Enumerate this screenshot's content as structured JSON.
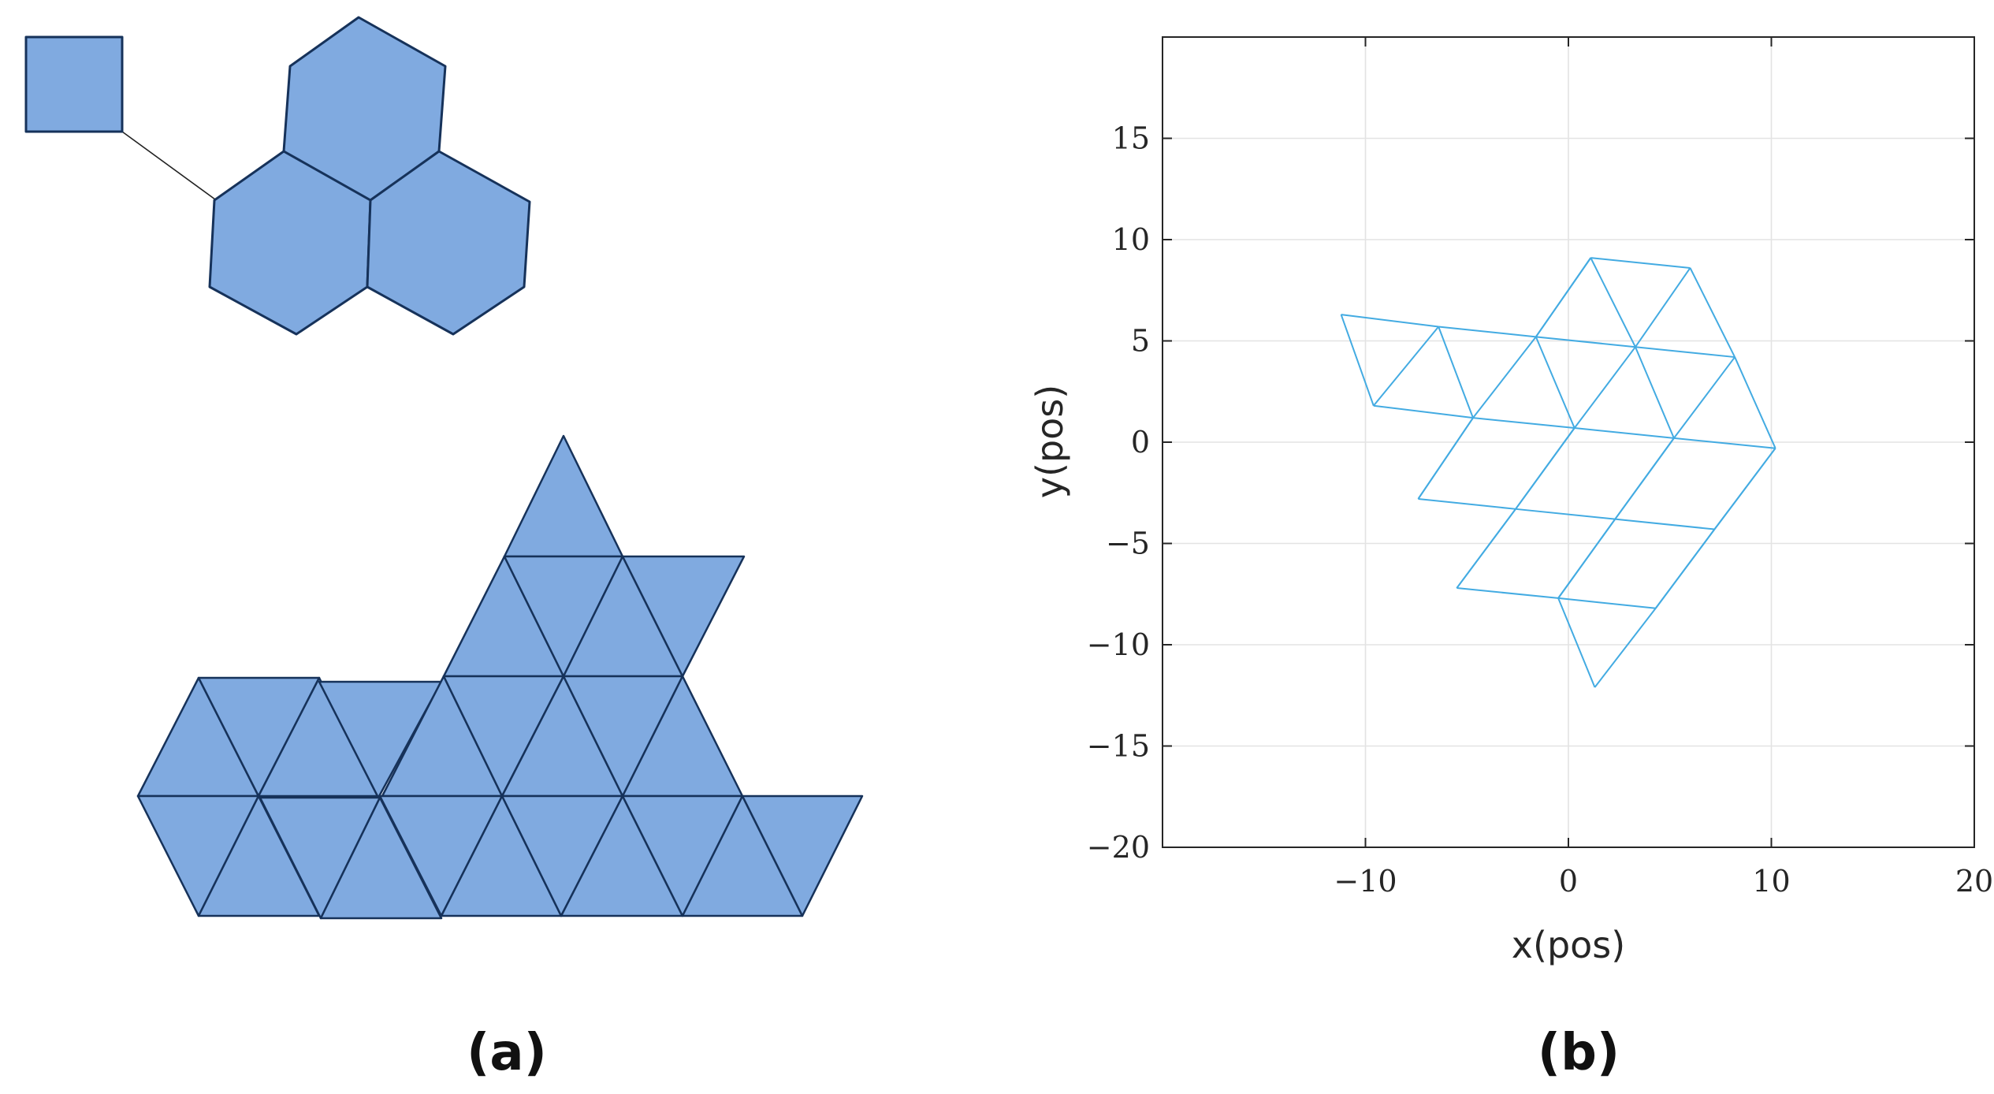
{
  "panels": {
    "a": {
      "label": "(a)"
    },
    "b": {
      "label": "(b)"
    }
  },
  "colors": {
    "module_fill": "#80aae0",
    "module_edge": "#16325a",
    "mesh_line": "#43abe2",
    "grid": "#e3e3e3"
  },
  "panel_a": {
    "square_modules": 1,
    "hexagon_modules": 3,
    "triangle_modules": 23
  },
  "chart_data": {
    "type": "line",
    "title": "",
    "xlabel": "x(pos)",
    "ylabel": "y(pos)",
    "xlim": [
      -20,
      20
    ],
    "ylim": [
      -20,
      20
    ],
    "xticks": [
      -10,
      0,
      10,
      20
    ],
    "yticks": [
      15,
      10,
      5,
      0,
      -5,
      -10,
      -15,
      -20
    ],
    "xtick_labels": [
      "−10",
      "0",
      "10",
      "20"
    ],
    "ytick_labels": [
      "15",
      "10",
      "5",
      "0",
      "−5",
      "−10",
      "−15",
      "−20"
    ],
    "grid": true,
    "nodes": [
      [
        -11.2,
        6.3
      ],
      [
        -6.4,
        5.7
      ],
      [
        -1.6,
        5.2
      ],
      [
        3.3,
        4.7
      ],
      [
        8.2,
        4.2
      ],
      [
        -9.6,
        1.8
      ],
      [
        -4.7,
        1.2
      ],
      [
        0.3,
        0.7
      ],
      [
        5.2,
        0.2
      ],
      [
        10.2,
        -0.3
      ],
      [
        -7.4,
        -2.8
      ],
      [
        -2.6,
        -3.3
      ],
      [
        2.3,
        -3.8
      ],
      [
        7.2,
        -4.3
      ],
      [
        -5.5,
        -7.2
      ],
      [
        -0.5,
        -7.7
      ],
      [
        4.3,
        -8.2
      ],
      [
        1.1,
        9.1
      ],
      [
        6.0,
        8.6
      ],
      [
        1.3,
        -12.1
      ]
    ],
    "edges": [
      [
        0,
        1
      ],
      [
        1,
        2
      ],
      [
        2,
        3
      ],
      [
        3,
        4
      ],
      [
        5,
        6
      ],
      [
        6,
        7
      ],
      [
        7,
        8
      ],
      [
        8,
        9
      ],
      [
        10,
        11
      ],
      [
        11,
        12
      ],
      [
        12,
        13
      ],
      [
        14,
        15
      ],
      [
        15,
        16
      ],
      [
        17,
        18
      ],
      [
        0,
        5
      ],
      [
        1,
        6
      ],
      [
        2,
        7
      ],
      [
        3,
        8
      ],
      [
        4,
        9
      ],
      [
        6,
        10
      ],
      [
        7,
        11
      ],
      [
        8,
        12
      ],
      [
        9,
        13
      ],
      [
        11,
        14
      ],
      [
        12,
        15
      ],
      [
        13,
        16
      ],
      [
        17,
        2
      ],
      [
        18,
        4
      ],
      [
        15,
        19
      ],
      [
        5,
        1
      ],
      [
        6,
        2
      ],
      [
        7,
        3
      ],
      [
        8,
        4
      ],
      [
        10,
        6
      ],
      [
        11,
        7
      ],
      [
        12,
        8
      ],
      [
        13,
        9
      ],
      [
        14,
        11
      ],
      [
        15,
        12
      ],
      [
        16,
        13
      ],
      [
        2,
        17
      ],
      [
        3,
        18
      ],
      [
        3,
        17
      ],
      [
        16,
        19
      ]
    ]
  }
}
